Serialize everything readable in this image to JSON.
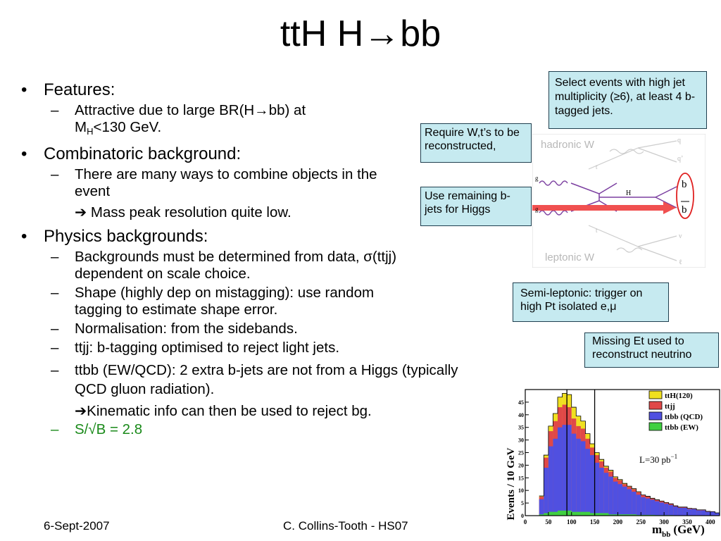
{
  "slide": {
    "title": "ttH H→bb",
    "bullets": [
      {
        "label": "Features:",
        "subs": [
          "Attractive due to large BR(H→bb) at"
        ],
        "sub_line2_prefix": "M",
        "sub_line2_sub": "H",
        "sub_line2_rest": "<130 GeV."
      },
      {
        "label": "Combinatoric background:",
        "subs": [
          "There are many ways to combine objects in the event"
        ],
        "arrow_note": "➔ Mass peak resolution quite low."
      },
      {
        "label": "Physics backgrounds:",
        "subs": [
          "Backgrounds must be determined from data, σ(ttjj) dependent on scale choice.",
          "Shape (highly dep on mistagging): use random tagging to estimate shape error.",
          "Normalisation: from the sidebands.",
          "ttjj: b-tagging optimised to reject light jets.",
          "ttbb (EW/QCD): 2 extra b-jets are not from a Higgs (typically QCD gluon radiation)."
        ],
        "arrow_note": "➔Kinematic info can then be used to reject bg.",
        "green_item": "S/√B = 2.8"
      }
    ],
    "callouts": {
      "select": "Select events with high jet multiplicity (≥6), at least 4 b-tagged jets.",
      "require": "Require W,t’s to be reconstructed,",
      "remaining": "Use remaining b-jets for Higgs",
      "semilep": "Semi-leptonic: trigger on high Pt isolated e,μ",
      "missing": "Missing Et used to reconstruct neutrino"
    },
    "diagram": {
      "hadronic_label": "hadronic W",
      "leptonic_label": "leptonic W",
      "higgs_label": "H",
      "b_label": "b",
      "bbar_label": "b",
      "g_label": "g",
      "t_label": "t",
      "tbar_label": "t",
      "q_label": "q",
      "qprime_label": "q’",
      "nu_label": "ν",
      "l_label": "ℓ"
    },
    "footer": {
      "date": "6-Sept-2007",
      "author": "C. Collins-Tooth  -  HS07"
    },
    "colors": {
      "callout_bg": "#c6eaf0",
      "green_text": "#1a8a1a",
      "arrow": "#f05050"
    }
  },
  "chart_data": {
    "type": "area",
    "stacked": true,
    "xlabel": "m",
    "xlabel_sub": "bb",
    "xlabel_unit": "(GeV)",
    "ylabel": "Events / 10 GeV",
    "xlim": [
      0,
      420
    ],
    "ylim": [
      0,
      50
    ],
    "xticks": [
      0,
      50,
      100,
      150,
      200,
      250,
      300,
      350,
      400
    ],
    "yticks": [
      0,
      5,
      10,
      15,
      20,
      25,
      30,
      35,
      40,
      45
    ],
    "annotation": "L=30 pb",
    "annotation_sup": "−1",
    "cut_lines": [
      90,
      150
    ],
    "legend_position": "top-right",
    "bins_x": [
      30,
      40,
      50,
      60,
      70,
      80,
      90,
      100,
      110,
      120,
      130,
      140,
      150,
      160,
      170,
      180,
      190,
      200,
      210,
      220,
      230,
      240,
      250,
      260,
      270,
      280,
      290,
      300,
      310,
      320,
      330,
      340,
      350,
      360,
      370,
      380,
      390,
      400,
      410
    ],
    "series": [
      {
        "name": "ttbb (EW)",
        "color": "#40d040",
        "values": [
          0.5,
          1,
          1.5,
          1.5,
          2,
          2,
          2,
          1.5,
          1.5,
          1.5,
          1.5,
          1,
          1,
          1,
          1,
          0.5,
          0.5,
          0.5,
          0.5,
          0.5,
          0.5,
          0.3,
          0.3,
          0.3,
          0.3,
          0.2,
          0.2,
          0.2,
          0.2,
          0.1,
          0.1,
          0.1,
          0.1,
          0.1,
          0.1,
          0.1,
          0,
          0,
          0
        ]
      },
      {
        "name": "ttbb (QCD)",
        "color": "#5050e0",
        "values": [
          6,
          18,
          26,
          29,
          33,
          34,
          34,
          31,
          29,
          28,
          25,
          23,
          20,
          18,
          16,
          15,
          13,
          12,
          11,
          10,
          9,
          8,
          7,
          6.5,
          6,
          5.5,
          5,
          4.5,
          4,
          3.5,
          3,
          3,
          2.5,
          2.5,
          2,
          2,
          1.5,
          1.5,
          1
        ]
      },
      {
        "name": "ttjj",
        "color": "#e04848",
        "values": [
          1,
          4,
          6,
          7,
          8,
          8,
          7,
          6,
          5,
          5,
          4,
          3,
          3,
          2.5,
          2,
          2,
          1.5,
          1.5,
          1,
          1,
          1,
          1,
          0.8,
          0.8,
          0.5,
          0.5,
          0.5,
          0.5,
          0.5,
          0.3,
          0.3,
          0.3,
          0.3,
          0.2,
          0.2,
          0.2,
          0.2,
          0.1,
          0.1
        ]
      },
      {
        "name": "ttH(120)",
        "color": "#f0e020",
        "values": [
          0.3,
          1,
          2,
          3,
          4,
          4.5,
          5,
          4.5,
          4,
          3,
          2,
          1.5,
          1,
          0.8,
          0.6,
          0.5,
          0.4,
          0.3,
          0.3,
          0.2,
          0.2,
          0.2,
          0.1,
          0.1,
          0.1,
          0.1,
          0.1,
          0,
          0,
          0,
          0,
          0,
          0,
          0,
          0,
          0,
          0,
          0,
          0
        ]
      }
    ]
  }
}
